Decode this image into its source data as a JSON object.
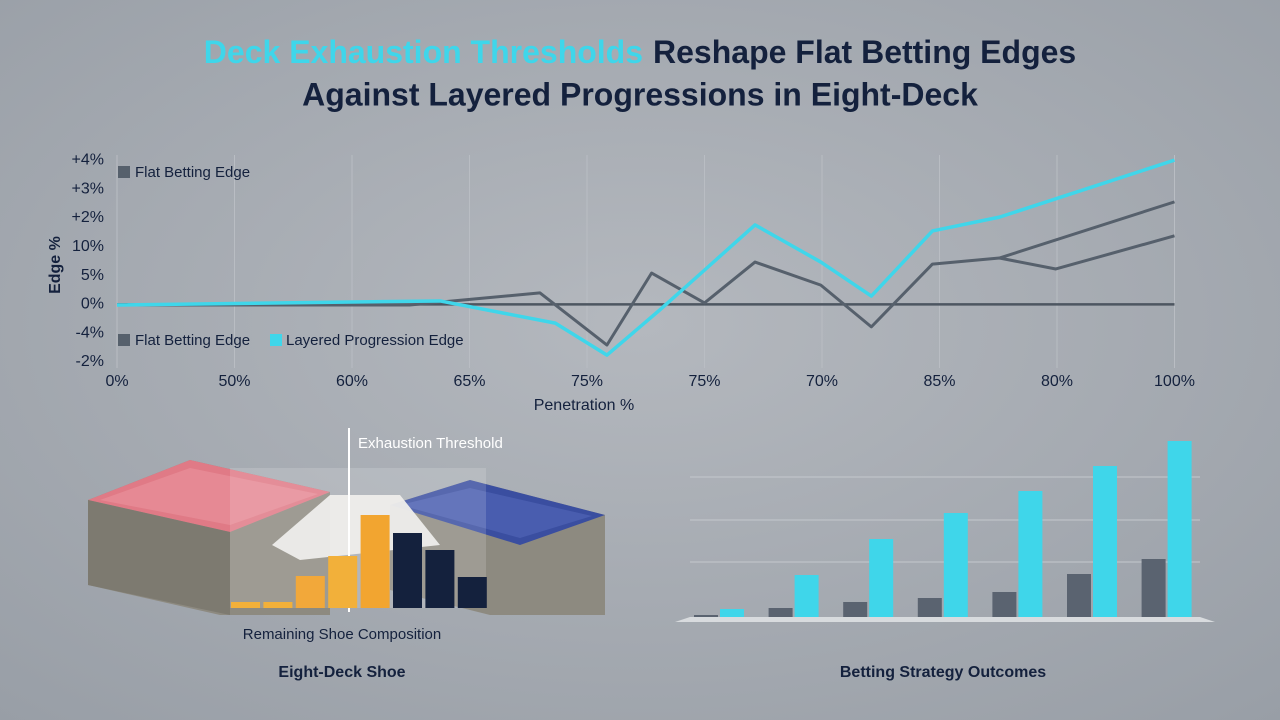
{
  "chart_data": [
    {
      "type": "line",
      "title": [
        "Deck Exhaustion Thresholds",
        "Reshape Flat Betting Edges",
        "Against Layered Progressions in Eight-Deck"
      ],
      "y_label": "Edge %",
      "x_label": "Penetration %",
      "categories": [
        "0%",
        "50%",
        "60%",
        "65%",
        "75%",
        "75%",
        "70%",
        "85%",
        "80%",
        "100%"
      ],
      "y_categories": [
        "-2%",
        "-4%",
        "0%",
        "5%",
        "10%",
        "+2%",
        "+3%",
        "+4%"
      ],
      "series": [
        {
          "name": "Flat Betting Edge",
          "color": "#56606c",
          "x": [
            0,
            2.49,
            2.75,
            3.6,
            4.17,
            4.55,
            5.0,
            5.43,
            5.99,
            6.42,
            6.94,
            7.51,
            7.99,
            9.0
          ],
          "values": [
            1.98,
            1.98,
            2.08,
            2.4,
            0.59,
            3.09,
            2.05,
            3.47,
            2.67,
            1.22,
            3.4,
            3.61,
            3.23,
            4.38
          ]
        },
        {
          "name": "Layered Progression Edge",
          "color": "#3fd6ea",
          "x": [
            0,
            2.75,
            3.73,
            4.17,
            4.62,
            5.0,
            5.43,
            5.99,
            6.42,
            6.94,
            7.51,
            9.0
          ],
          "values": [
            1.98,
            2.12,
            1.35,
            0.24,
            1.81,
            3.19,
            4.76,
            3.47,
            2.29,
            4.55,
            5.03,
            7.01
          ]
        },
        {
          "color": "#56606c",
          "x": [
            7.51,
            9.0
          ],
          "values": [
            3.61,
            5.56
          ]
        }
      ]
    },
    {
      "type": "bar",
      "title": "Eight-Deck Shoe",
      "x_label": "Remaining Shoe Composition",
      "annotation": "Exhaustion Threshold",
      "values": [
        6,
        6,
        32,
        52,
        93,
        75,
        58,
        31
      ],
      "colors": [
        "#f2b03a",
        "#f2b03a",
        "#f2a83a",
        "#f2b03a",
        "#f2a530",
        "#14213d",
        "#14213d",
        "#14213d"
      ]
    },
    {
      "type": "bar",
      "title": "Betting Strategy Outcomes",
      "series": [
        {
          "color": "#5a6370",
          "values": [
            2,
            9,
            15,
            19,
            25,
            43,
            58
          ]
        },
        {
          "color": "#3fd6ea",
          "values": [
            8,
            42,
            78,
            104,
            126,
            151,
            176
          ]
        }
      ]
    }
  ]
}
